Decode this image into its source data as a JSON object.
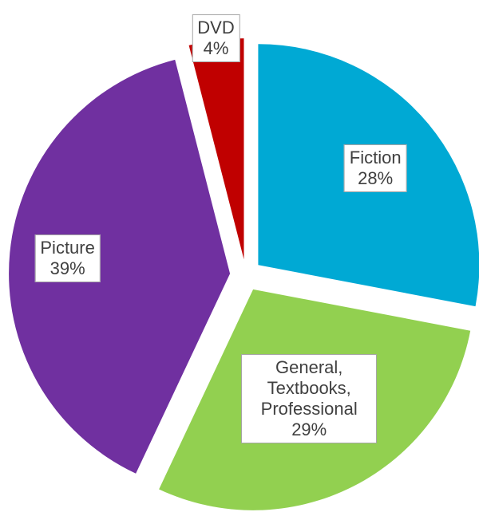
{
  "chart_data": {
    "type": "pie",
    "categories": [
      "Fiction",
      "General, Textbooks, Professional",
      "Picture",
      "DVD"
    ],
    "values": [
      28,
      29,
      39,
      4
    ],
    "value_labels": [
      "28%",
      "29%",
      "39%",
      "4%"
    ],
    "colors": [
      "#00a9d4",
      "#92d050",
      "#7030a0",
      "#c00000"
    ]
  }
}
